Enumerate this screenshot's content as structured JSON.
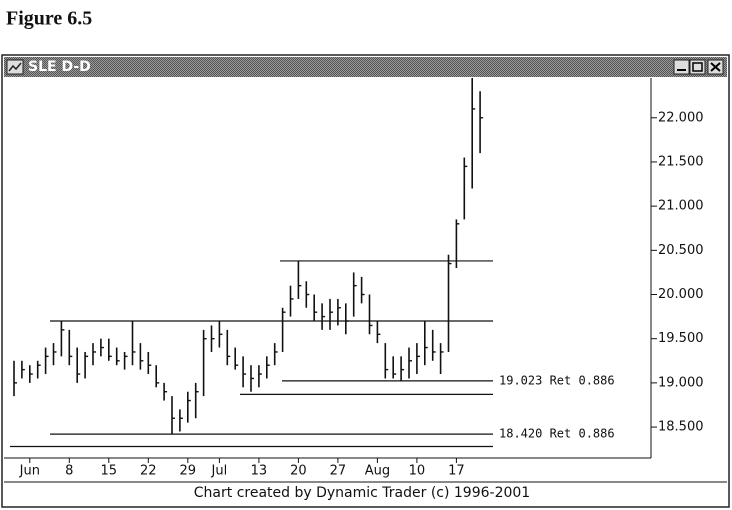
{
  "figure_title": "Figure 6.5",
  "chart_data": {
    "type": "ohlc",
    "title": "SLE D-D",
    "caption": "Chart created by Dynamic Trader (c) 1996-2001",
    "categories": [
      null,
      null,
      "Jun",
      null,
      null,
      null,
      null,
      "8",
      null,
      null,
      null,
      null,
      "15",
      null,
      null,
      null,
      null,
      "22",
      null,
      null,
      null,
      null,
      "29",
      null,
      null,
      null,
      "Jul",
      null,
      null,
      null,
      null,
      "13",
      null,
      null,
      null,
      null,
      "20",
      null,
      null,
      null,
      null,
      "27",
      null,
      null,
      null,
      null,
      "Aug",
      null,
      null,
      null,
      null,
      "10",
      null,
      null,
      null,
      null,
      "17",
      null,
      null,
      null
    ],
    "high": [
      19.25,
      19.25,
      19.2,
      19.25,
      19.4,
      19.45,
      19.7,
      19.6,
      19.4,
      19.35,
      19.45,
      19.5,
      19.5,
      19.4,
      19.35,
      19.7,
      19.45,
      19.35,
      19.2,
      19.0,
      18.85,
      18.7,
      18.9,
      19.0,
      19.6,
      19.65,
      19.7,
      19.6,
      19.4,
      19.3,
      19.2,
      19.2,
      19.3,
      19.45,
      19.85,
      20.1,
      20.38,
      20.15,
      20.0,
      19.9,
      19.95,
      19.95,
      19.9,
      20.25,
      20.2,
      20.0,
      19.7,
      19.45,
      19.3,
      19.3,
      19.4,
      19.45,
      19.7,
      19.6,
      19.45,
      20.45,
      20.85,
      21.55,
      22.45,
      22.3
    ],
    "low": [
      18.85,
      19.05,
      19.0,
      19.05,
      19.1,
      19.2,
      19.3,
      19.2,
      19.0,
      19.05,
      19.2,
      19.3,
      19.25,
      19.2,
      19.15,
      19.2,
      19.15,
      19.1,
      18.95,
      18.8,
      18.42,
      18.45,
      18.55,
      18.6,
      18.85,
      19.35,
      19.4,
      19.2,
      19.15,
      18.95,
      18.9,
      18.95,
      19.05,
      19.2,
      19.35,
      19.75,
      19.95,
      19.85,
      19.7,
      19.6,
      19.6,
      19.65,
      19.55,
      19.75,
      19.9,
      19.55,
      19.45,
      19.05,
      19.05,
      19.02,
      19.05,
      19.1,
      19.2,
      19.25,
      19.1,
      19.35,
      20.3,
      20.85,
      21.2,
      21.6
    ],
    "close": [
      19.0,
      19.15,
      19.1,
      19.2,
      19.3,
      19.35,
      19.6,
      19.3,
      19.1,
      19.3,
      19.35,
      19.4,
      19.3,
      19.25,
      19.3,
      19.35,
      19.25,
      19.2,
      19.0,
      18.9,
      18.6,
      18.6,
      18.8,
      18.9,
      19.5,
      19.5,
      19.55,
      19.3,
      19.2,
      19.1,
      19.05,
      19.1,
      19.2,
      19.35,
      19.8,
      19.95,
      20.1,
      20.0,
      19.8,
      19.75,
      19.8,
      19.85,
      19.7,
      20.1,
      20.0,
      19.65,
      19.55,
      19.15,
      19.1,
      19.15,
      19.25,
      19.3,
      19.4,
      19.35,
      19.35,
      20.35,
      20.8,
      21.45,
      22.1,
      22.0
    ],
    "color": "#111111",
    "levels": [
      {
        "value": 19.7
      },
      {
        "value": 20.38
      },
      {
        "value": 19.023,
        "label": "19.023 Ret 0.886"
      },
      {
        "value": 18.87
      },
      {
        "value": 18.42,
        "label": "18.420 Ret 0.886"
      },
      {
        "value": 18.28
      }
    ],
    "ylim": [
      18.15,
      22.45
    ],
    "yticks": [
      {
        "value": 18.5,
        "label": "18.500"
      },
      {
        "value": 19.0,
        "label": "19.000"
      },
      {
        "value": 19.5,
        "label": "19.500"
      },
      {
        "value": 20.0,
        "label": "20.000"
      },
      {
        "value": 20.5,
        "label": "20.500"
      },
      {
        "value": 21.0,
        "label": "21.000"
      },
      {
        "value": 21.5,
        "label": "21.500"
      },
      {
        "value": 22.0,
        "label": "22.000"
      }
    ]
  }
}
